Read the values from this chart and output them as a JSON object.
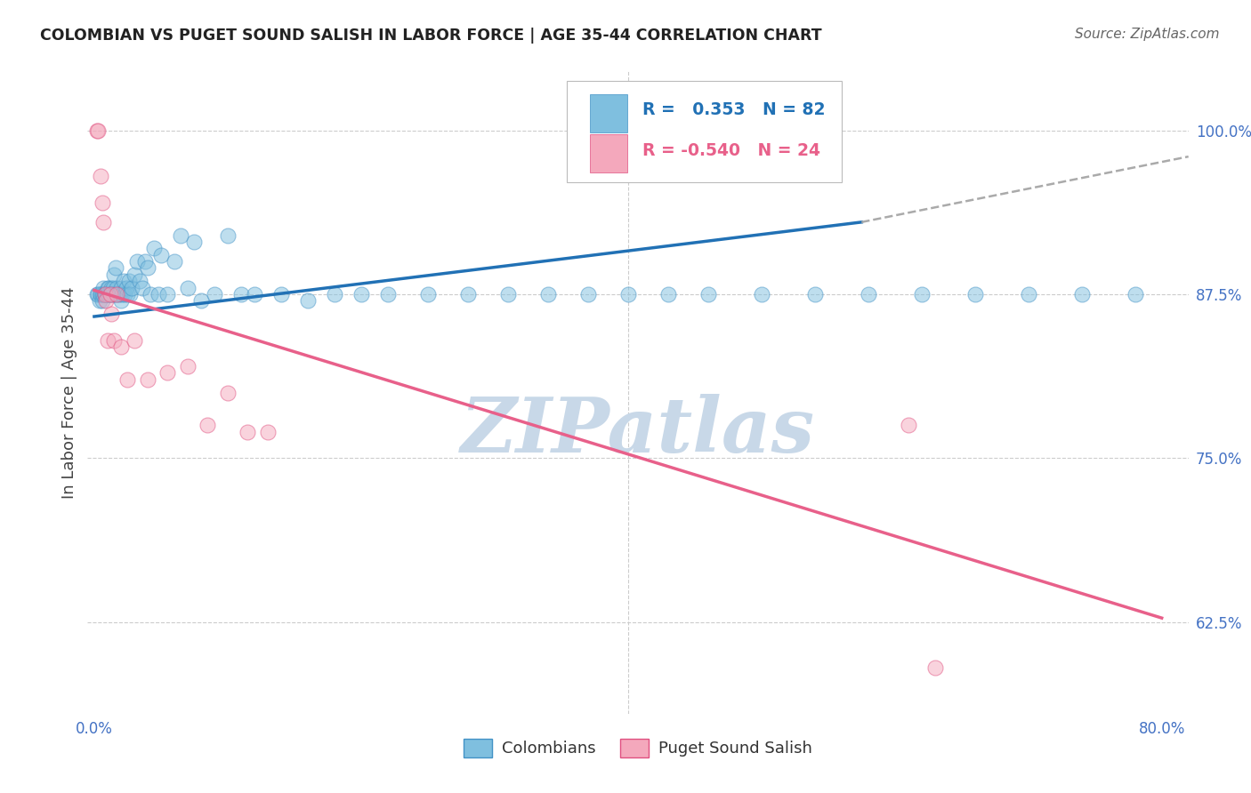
{
  "title": "COLOMBIAN VS PUGET SOUND SALISH IN LABOR FORCE | AGE 35-44 CORRELATION CHART",
  "source": "Source: ZipAtlas.com",
  "ylabel": "In Labor Force | Age 35-44",
  "xlim": [
    -0.005,
    0.82
  ],
  "ylim": [
    0.555,
    1.045
  ],
  "yticks": [
    0.625,
    0.75,
    0.875,
    1.0
  ],
  "ytick_labels": [
    "62.5%",
    "75.0%",
    "87.5%",
    "100.0%"
  ],
  "xtick_positions": [
    0.0,
    0.1,
    0.2,
    0.3,
    0.4,
    0.5,
    0.6,
    0.7,
    0.8
  ],
  "xtick_labels": [
    "0.0%",
    "",
    "",
    "",
    "",
    "",
    "",
    "",
    "80.0%"
  ],
  "blue_scatter_x": [
    0.002,
    0.003,
    0.004,
    0.005,
    0.005,
    0.006,
    0.006,
    0.007,
    0.007,
    0.008,
    0.008,
    0.009,
    0.009,
    0.01,
    0.01,
    0.01,
    0.011,
    0.011,
    0.012,
    0.012,
    0.013,
    0.013,
    0.014,
    0.014,
    0.015,
    0.015,
    0.016,
    0.016,
    0.017,
    0.018,
    0.019,
    0.02,
    0.02,
    0.021,
    0.022,
    0.023,
    0.024,
    0.025,
    0.026,
    0.027,
    0.028,
    0.03,
    0.032,
    0.034,
    0.036,
    0.038,
    0.04,
    0.042,
    0.045,
    0.048,
    0.05,
    0.055,
    0.06,
    0.065,
    0.07,
    0.075,
    0.08,
    0.09,
    0.1,
    0.11,
    0.12,
    0.14,
    0.16,
    0.18,
    0.2,
    0.22,
    0.25,
    0.28,
    0.31,
    0.34,
    0.37,
    0.4,
    0.43,
    0.46,
    0.5,
    0.54,
    0.58,
    0.62,
    0.66,
    0.7,
    0.74,
    0.78
  ],
  "blue_scatter_y": [
    0.875,
    0.875,
    0.87,
    0.875,
    0.875,
    0.87,
    0.875,
    0.875,
    0.88,
    0.875,
    0.875,
    0.875,
    0.875,
    0.875,
    0.88,
    0.875,
    0.875,
    0.88,
    0.875,
    0.875,
    0.88,
    0.875,
    0.875,
    0.88,
    0.89,
    0.875,
    0.875,
    0.895,
    0.88,
    0.875,
    0.875,
    0.87,
    0.88,
    0.875,
    0.885,
    0.875,
    0.88,
    0.875,
    0.885,
    0.875,
    0.88,
    0.89,
    0.9,
    0.885,
    0.88,
    0.9,
    0.895,
    0.875,
    0.91,
    0.875,
    0.905,
    0.875,
    0.9,
    0.92,
    0.88,
    0.915,
    0.87,
    0.875,
    0.92,
    0.875,
    0.875,
    0.875,
    0.87,
    0.875,
    0.875,
    0.875,
    0.875,
    0.875,
    0.875,
    0.875,
    0.875,
    0.875,
    0.875,
    0.875,
    0.875,
    0.875,
    0.875,
    0.875,
    0.875,
    0.875,
    0.875,
    0.875
  ],
  "pink_scatter_x": [
    0.002,
    0.003,
    0.005,
    0.006,
    0.007,
    0.008,
    0.009,
    0.01,
    0.012,
    0.013,
    0.015,
    0.017,
    0.02,
    0.025,
    0.03,
    0.04,
    0.055,
    0.07,
    0.085,
    0.1,
    0.115,
    0.13,
    0.61,
    0.63
  ],
  "pink_scatter_y": [
    1.0,
    1.0,
    0.965,
    0.945,
    0.93,
    0.875,
    0.87,
    0.84,
    0.875,
    0.86,
    0.84,
    0.875,
    0.835,
    0.81,
    0.84,
    0.81,
    0.815,
    0.82,
    0.775,
    0.8,
    0.77,
    0.77,
    0.775,
    0.59
  ],
  "blue_line_x": [
    0.0,
    0.575
  ],
  "blue_line_y": [
    0.858,
    0.93
  ],
  "dash_line_x": [
    0.575,
    0.82
  ],
  "dash_line_y": [
    0.93,
    0.98
  ],
  "pink_line_x": [
    0.0,
    0.8
  ],
  "pink_line_y": [
    0.878,
    0.628
  ],
  "r_blue": " 0.353",
  "n_blue": "82",
  "r_pink": "-0.540",
  "n_pink": "24",
  "watermark": "ZIPatlas",
  "watermark_color": "#c8d8e8",
  "bg_color": "#ffffff",
  "grid_color": "#cccccc",
  "tick_color": "#4472c4",
  "title_color": "#222222",
  "source_color": "#666666",
  "blue_dot_color": "#7fbfdf",
  "blue_dot_edge": "#4292c6",
  "pink_dot_color": "#f4a8bc",
  "pink_dot_edge": "#e05080",
  "blue_line_color": "#2171b5",
  "pink_line_color": "#e8608a",
  "dash_line_color": "#aaaaaa"
}
